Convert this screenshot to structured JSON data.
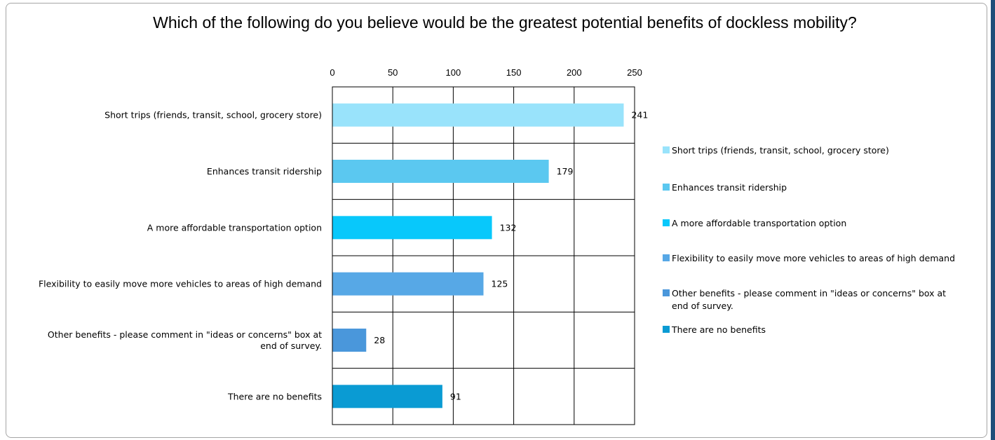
{
  "chart_data": {
    "type": "bar",
    "orientation": "horizontal",
    "title": "Which of the following do you believe would be the greatest potential benefits of dockless mobility?",
    "categories": [
      "Short trips (friends, transit, school, grocery store)",
      "Enhances transit ridership",
      "A more affordable transportation option",
      "Flexibility to easily move more vehicles to areas of high demand",
      "Other benefits - please comment in \"ideas or concerns\" box at end of survey.",
      "There are no benefits"
    ],
    "category_lines": [
      [
        "Short trips (friends, transit, school, grocery store)"
      ],
      [
        "Enhances transit ridership"
      ],
      [
        "A more affordable transportation option"
      ],
      [
        "Flexibility to easily move more vehicles to areas of high demand"
      ],
      [
        "Other benefits - please comment in \"ideas or concerns\" box at",
        "end of survey."
      ],
      [
        "There are no benefits"
      ]
    ],
    "values": [
      241,
      179,
      132,
      125,
      28,
      91
    ],
    "colors": [
      "#99e3fb",
      "#5bc8f0",
      "#08c8fb",
      "#57a8e6",
      "#4a97db",
      "#0a9bd3"
    ],
    "xlim": [
      0,
      250
    ],
    "xticks": [
      0,
      50,
      100,
      150,
      200,
      250
    ],
    "grid": true,
    "legend_position": "right",
    "legend": [
      [
        "Short trips (friends, transit, school, grocery store)"
      ],
      [
        "Enhances transit ridership"
      ],
      [
        "A more affordable transportation option"
      ],
      [
        "Flexibility to easily move more vehicles to areas of high demand"
      ],
      [
        "Other benefits - please comment in \"ideas or concerns\" box at",
        "end of survey."
      ],
      [
        "There are no benefits"
      ]
    ]
  }
}
